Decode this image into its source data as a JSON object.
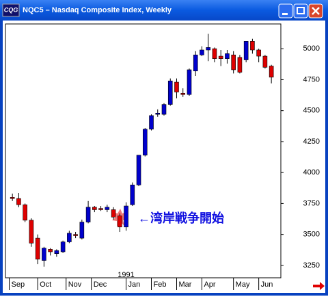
{
  "window_title": "NQC5 – Nasdaq Composite Index, Weekly",
  "icon_label": "CQG",
  "chart_data": {
    "type": "candlestick",
    "up_color": "#0000cc",
    "down_color": "#dd0000",
    "open": [
      3800,
      3790,
      3740,
      3615,
      3470,
      3290,
      3380,
      3345,
      3360,
      3440,
      3500,
      3470,
      3600,
      3720,
      3710,
      3700,
      3700,
      3650,
      3560,
      3740,
      3900,
      4140,
      4350,
      4470,
      4470,
      4550,
      4730,
      4640,
      4630,
      4820,
      4950,
      4990,
      5000,
      4940,
      4920,
      4950,
      4930,
      4910,
      5060,
      4990,
      4940,
      4860
    ],
    "high": [
      3830,
      3835,
      3750,
      3630,
      3500,
      3400,
      3390,
      3380,
      3450,
      3530,
      3520,
      3620,
      3770,
      3730,
      3730,
      3740,
      3720,
      3670,
      3760,
      3920,
      4140,
      4360,
      4470,
      4510,
      4560,
      4760,
      4760,
      4680,
      4840,
      4980,
      5020,
      5120,
      5010,
      4990,
      4990,
      4980,
      4950,
      5060,
      5080,
      5000,
      4950,
      4870
    ],
    "low": [
      3770,
      3720,
      3600,
      3400,
      3260,
      3240,
      3330,
      3320,
      3350,
      3430,
      3470,
      3460,
      3590,
      3680,
      3690,
      3680,
      3620,
      3520,
      3530,
      3730,
      3890,
      4130,
      4340,
      4450,
      4460,
      4540,
      4600,
      4610,
      4620,
      4780,
      4940,
      4900,
      4890,
      4860,
      4880,
      4800,
      4800,
      4890,
      4960,
      4890,
      4840,
      4720
    ],
    "close": [
      3790,
      3740,
      3615,
      3430,
      3300,
      3390,
      3360,
      3370,
      3440,
      3510,
      3490,
      3600,
      3720,
      3700,
      3700,
      3720,
      3640,
      3560,
      3730,
      3900,
      4140,
      4350,
      4460,
      4480,
      4550,
      4740,
      4650,
      4630,
      4830,
      4950,
      4990,
      5010,
      4920,
      4920,
      4960,
      4830,
      4810,
      5060,
      4990,
      4940,
      4850,
      4770
    ],
    "xlim": [
      -1.1,
      42.5
    ],
    "xticks": [
      {
        "value": -0.5,
        "label": "Sep"
      },
      {
        "value": 4,
        "label": "Oct"
      },
      {
        "value": 8.5,
        "label": "Nov"
      },
      {
        "value": 12.5,
        "label": "Dec"
      },
      {
        "value": 18,
        "label": "Jan"
      },
      {
        "value": 22,
        "label": "Feb"
      },
      {
        "value": 26,
        "label": "Mar"
      },
      {
        "value": 30,
        "label": "Apr"
      },
      {
        "value": 35,
        "label": "May"
      },
      {
        "value": 39,
        "label": "Jun"
      }
    ],
    "year_label": "1991",
    "ylim": [
      3150,
      5200
    ],
    "yticks": [
      3250,
      3500,
      3750,
      4000,
      4250,
      4500,
      4750,
      5000
    ],
    "annotation": "←湾岸戦争開始"
  }
}
